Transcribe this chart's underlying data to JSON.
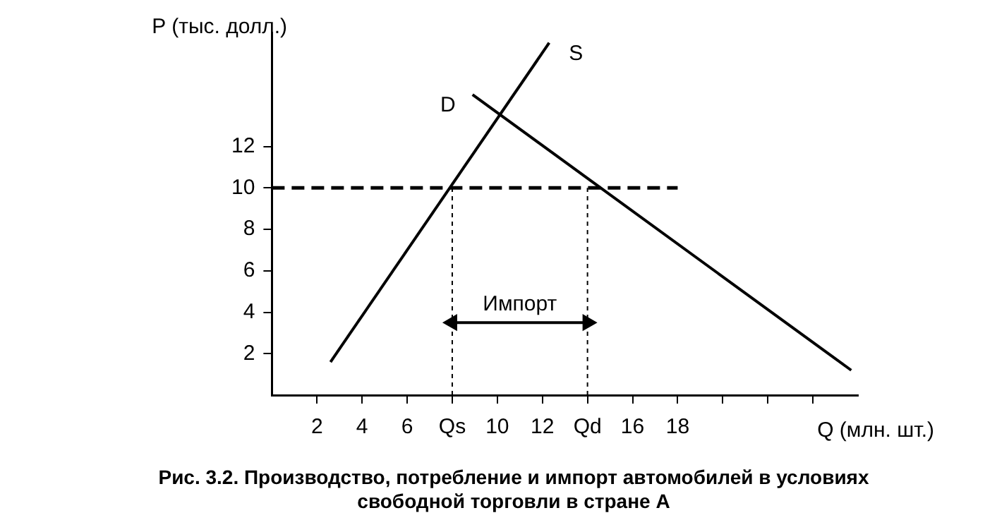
{
  "chart_data": {
    "type": "line",
    "xlabel": "Q (млн. шт.)",
    "ylabel": "P (тыс. долл.)",
    "xlim": [
      0,
      26
    ],
    "xticks": [
      2,
      4,
      6,
      {
        "value": 8,
        "label": "Qs"
      },
      10,
      12,
      {
        "value": 14,
        "label": "Qd"
      },
      16,
      18,
      {
        "value": 20,
        "label": null
      },
      {
        "value": 22,
        "label": null
      },
      {
        "value": 24,
        "label": null
      }
    ],
    "ylim": [
      0,
      17.5
    ],
    "yticks": [
      2,
      4,
      6,
      8,
      10,
      12
    ],
    "grid": false,
    "legend": false,
    "marker": "none",
    "line_style": "solid",
    "series": [
      {
        "name": "S",
        "color": "#000000",
        "x": [
          2.6,
          12.3
        ],
        "values": [
          1.6,
          17.0
        ]
      },
      {
        "name": "D",
        "color": "#000000",
        "x": [
          8.9,
          25.7
        ],
        "values": [
          14.5,
          1.2
        ]
      },
      {
        "color": "#000000",
        "x": [
          0,
          18
        ],
        "values": [
          10,
          10
        ],
        "line_style": "dashed"
      },
      {
        "color": "#000000",
        "x": [
          8,
          8
        ],
        "values": [
          0,
          10
        ],
        "line_style": "dotted"
      },
      {
        "color": "#000000",
        "x": [
          14,
          14
        ],
        "values": [
          0,
          10
        ],
        "line_style": "dotted"
      },
      {
        "color": "#000000",
        "x": [
          8,
          14
        ],
        "values": [
          3.5,
          3.5
        ],
        "marker": "triangle"
      }
    ],
    "annotations": [
      {
        "text": "Импорт",
        "x": 11,
        "y": 3.5
      },
      "Рис. 3.2.  Производство, потребление  и  импорт автомобилей  в условиях свободной торговли в стране А"
    ]
  }
}
